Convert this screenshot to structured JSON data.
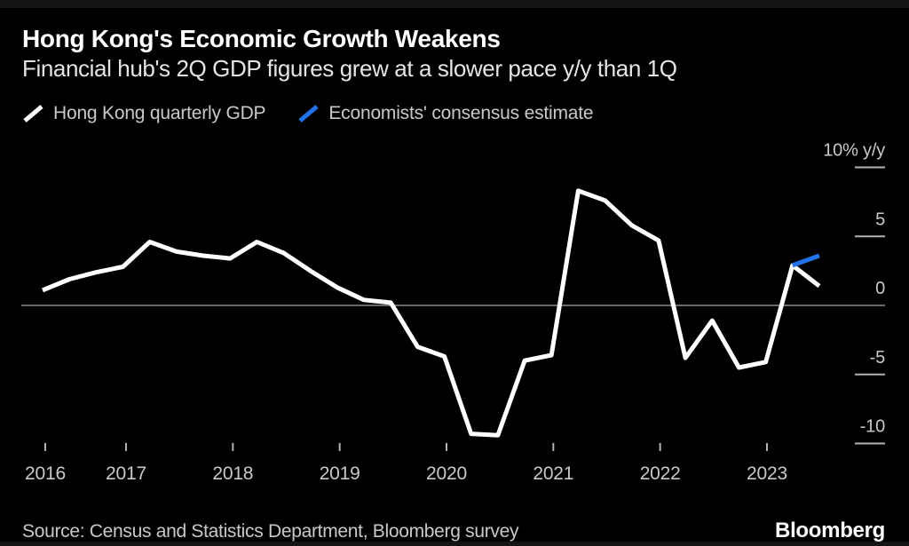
{
  "header": {
    "title": "Hong Kong's Economic Growth Weakens",
    "subtitle": "Financial hub's 2Q GDP figures grew at a slower pace y/y than 1Q"
  },
  "legend": [
    {
      "label": "Hong Kong quarterly GDP",
      "color": "#ffffff"
    },
    {
      "label": "Economists' consensus estimate",
      "color": "#2173eb"
    }
  ],
  "chart_data": {
    "type": "line",
    "title": "Hong Kong's Economic Growth Weakens",
    "subtitle": "Financial hub's 2Q GDP figures grew at a slower pace y/y than 1Q",
    "x_axis": {
      "periodicity": "quarterly",
      "range": "2016 Q1 to 2023 Q2",
      "tick_labels": [
        "2016",
        "2017",
        "2018",
        "2019",
        "2020",
        "2021",
        "2022",
        "2023"
      ]
    },
    "y_axis": {
      "unit": "% y/y",
      "ticks": [
        {
          "v": 10,
          "label": "10% y/y"
        },
        {
          "v": 5,
          "label": "5"
        },
        {
          "v": 0,
          "label": "0"
        },
        {
          "v": -5,
          "label": "-5"
        },
        {
          "v": -10,
          "label": "-10"
        }
      ]
    },
    "ylim": [
      -11.5,
      11.5
    ],
    "grid": "right-edge tick dashes plus full-width zero line",
    "legend_position": "top-left above plot",
    "series": [
      {
        "id": "hk-quarterly-gdp",
        "name": "Hong Kong quarterly GDP",
        "color": "#ffffff",
        "start_index": 0,
        "start_period": "2016 Q1",
        "values": [
          1.1,
          1.9,
          2.4,
          2.8,
          4.6,
          3.9,
          3.6,
          3.4,
          4.6,
          3.8,
          2.5,
          1.3,
          0.4,
          0.2,
          -3.0,
          -3.7,
          -9.3,
          -9.4,
          -4.0,
          -3.6,
          8.3,
          7.6,
          5.8,
          4.7,
          -3.8,
          -1.1,
          -4.5,
          -4.1,
          2.9,
          1.4
        ]
      },
      {
        "id": "consensus-estimate",
        "name": "Economists' consensus estimate",
        "color": "#2173eb",
        "start_index": 28,
        "start_period": "2023 Q1",
        "values": [
          2.9,
          3.6
        ]
      }
    ]
  },
  "footer": {
    "source": "Source: Census and Statistics Department, Bloomberg survey",
    "logo": "Bloomberg"
  }
}
